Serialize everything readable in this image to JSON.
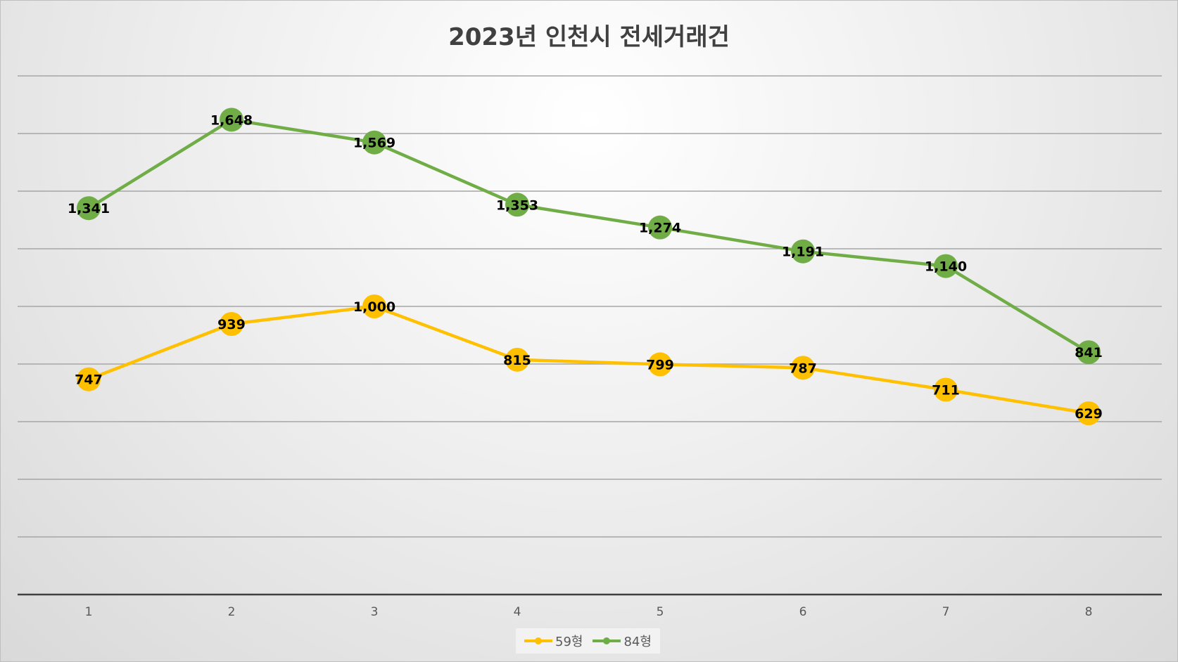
{
  "chart_data": {
    "type": "line",
    "title": "2023년 인천시 전세거래건",
    "xlabel": "",
    "ylabel": "",
    "categories": [
      "1",
      "2",
      "3",
      "4",
      "5",
      "6",
      "7",
      "8"
    ],
    "ylim": [
      0,
      1800
    ],
    "grid": true,
    "legend_position": "bottom",
    "series": [
      {
        "name": "59형",
        "color": "#FFC000",
        "values": [
          747,
          939,
          1000,
          815,
          799,
          787,
          711,
          629
        ],
        "labels": [
          "747",
          "939",
          "1,000",
          "815",
          "799",
          "787",
          "711",
          "629"
        ]
      },
      {
        "name": "84형",
        "color": "#70AD47",
        "values": [
          1341,
          1648,
          1569,
          1353,
          1274,
          1191,
          1140,
          841
        ],
        "labels": [
          "1,341",
          "1,648",
          "1,569",
          "1,353",
          "1,274",
          "1,191",
          "1,140",
          "841"
        ]
      }
    ]
  }
}
